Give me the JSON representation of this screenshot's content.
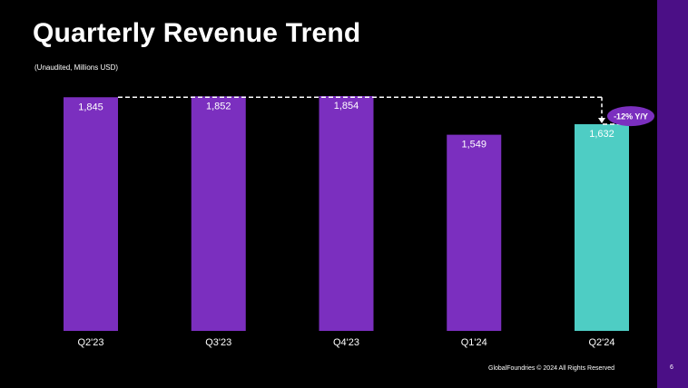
{
  "slide": {
    "title": "Quarterly Revenue Trend",
    "subtitle": "(Unaudited, Millions USD)",
    "footer": "GlobalFoundries © 2024 All Rights Reserved",
    "page_number": "6"
  },
  "colors": {
    "background": "#000000",
    "bar_default": "#7b2fbf",
    "bar_highlight": "#4ecdc4",
    "side_band": "#4b0f86",
    "badge": "#7b2fbf",
    "text": "#ffffff"
  },
  "chart_data": {
    "type": "bar",
    "title": "Quarterly Revenue Trend",
    "subtitle": "(Unaudited, Millions USD)",
    "xlabel": "",
    "ylabel": "",
    "categories": [
      "Q2'23",
      "Q3'23",
      "Q4'23",
      "Q1'24",
      "Q2'24"
    ],
    "values": [
      1845,
      1852,
      1854,
      1549,
      1632
    ],
    "value_labels": [
      "1,845",
      "1,852",
      "1,854",
      "1,549",
      "1,632"
    ],
    "highlight_index": 4,
    "ylim": [
      0,
      1854
    ],
    "grid": false,
    "annotation": {
      "label": "-12% Y/Y",
      "from_index": 0,
      "to_index": 4
    }
  }
}
